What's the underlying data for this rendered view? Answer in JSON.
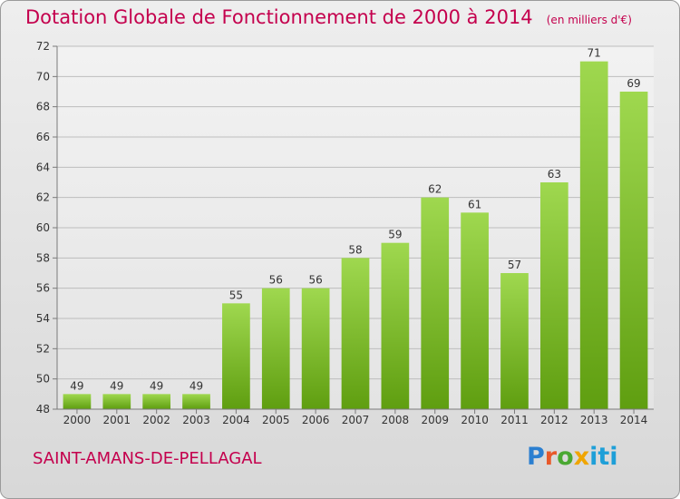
{
  "header": {
    "title": "Dotation Globale de Fonctionnement de 2000 à 2014",
    "unit_note": "(en milliers d'€)"
  },
  "footer": {
    "city": "SAINT-AMANS-DE-PELLAGAL",
    "logo_text": "Proxiti"
  },
  "colors": {
    "title": "#c4004d",
    "bar_top": "#9fd84f",
    "bar_bottom": "#5f9e10",
    "grid": "#bdbdbd"
  },
  "chart_data": {
    "type": "bar",
    "categories": [
      "2000",
      "2001",
      "2002",
      "2003",
      "2004",
      "2005",
      "2006",
      "2007",
      "2008",
      "2009",
      "2010",
      "2011",
      "2012",
      "2013",
      "2014"
    ],
    "values": [
      49,
      49,
      49,
      49,
      55,
      56,
      56,
      58,
      59,
      62,
      61,
      57,
      63,
      71,
      69
    ],
    "ylim": [
      48,
      72
    ],
    "yticks": [
      48,
      50,
      52,
      54,
      56,
      58,
      60,
      62,
      64,
      66,
      68,
      70,
      72
    ],
    "grid": true,
    "legend": "none"
  }
}
